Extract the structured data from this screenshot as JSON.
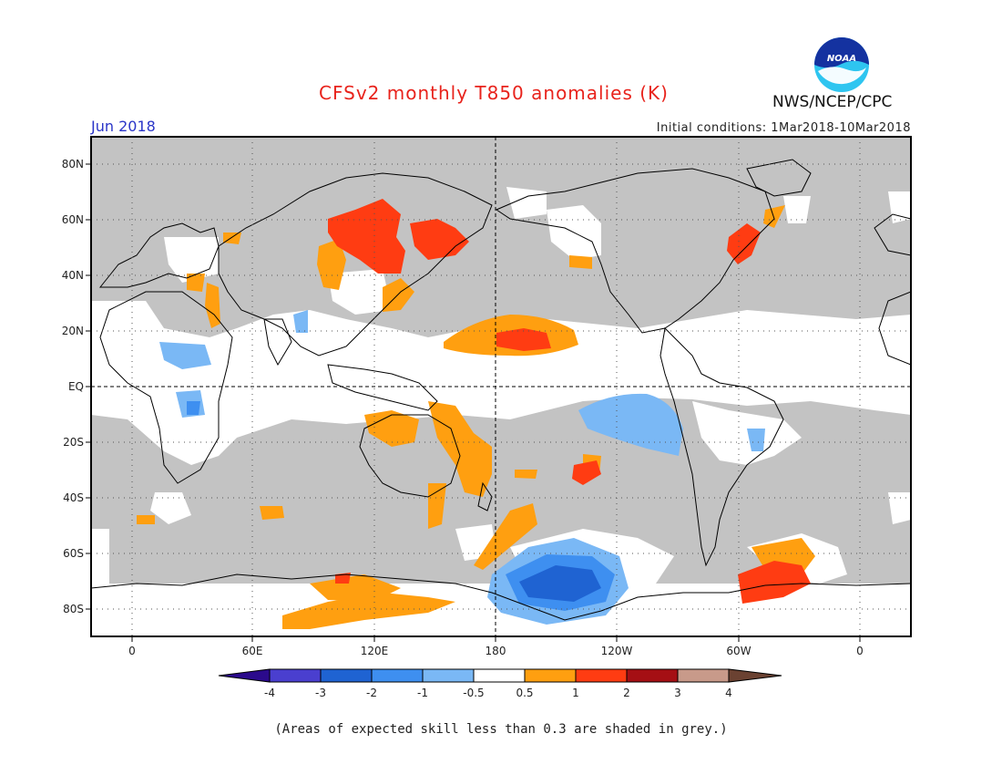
{
  "header": {
    "title": "CFSv2 monthly T850 anomalies (K)",
    "period": "Jun 2018",
    "initial_conditions": "Initial conditions: 1Mar2018-10Mar2018",
    "agency": "NWS/NCEP/CPC",
    "logo_text": "NOAA"
  },
  "map": {
    "lat_labels": [
      "80N",
      "60N",
      "40N",
      "20N",
      "EQ",
      "20S",
      "40S",
      "60S",
      "80S"
    ],
    "lon_labels": [
      "0",
      "60E",
      "120E",
      "180",
      "120W",
      "60W",
      "0"
    ]
  },
  "colorbar": {
    "tick_labels": [
      "-4",
      "-3",
      "-2",
      "-1",
      "-0.5",
      "0.5",
      "1",
      "2",
      "3",
      "4"
    ],
    "colors": [
      "#2b0a8c",
      "#4a3fcf",
      "#1f63d2",
      "#3e8ff0",
      "#7ab8f5",
      "#ffffff",
      "#ff9f10",
      "#ff3c12",
      "#a50f14",
      "#c89a8a",
      "#6b4232"
    ]
  },
  "footnote": "(Areas of expected skill less than 0.3 are shaded in grey.)",
  "colors": {
    "skill_grey": "#c3c3c3",
    "title_red": "#e8231c",
    "period_blue": "#2a35c8"
  }
}
